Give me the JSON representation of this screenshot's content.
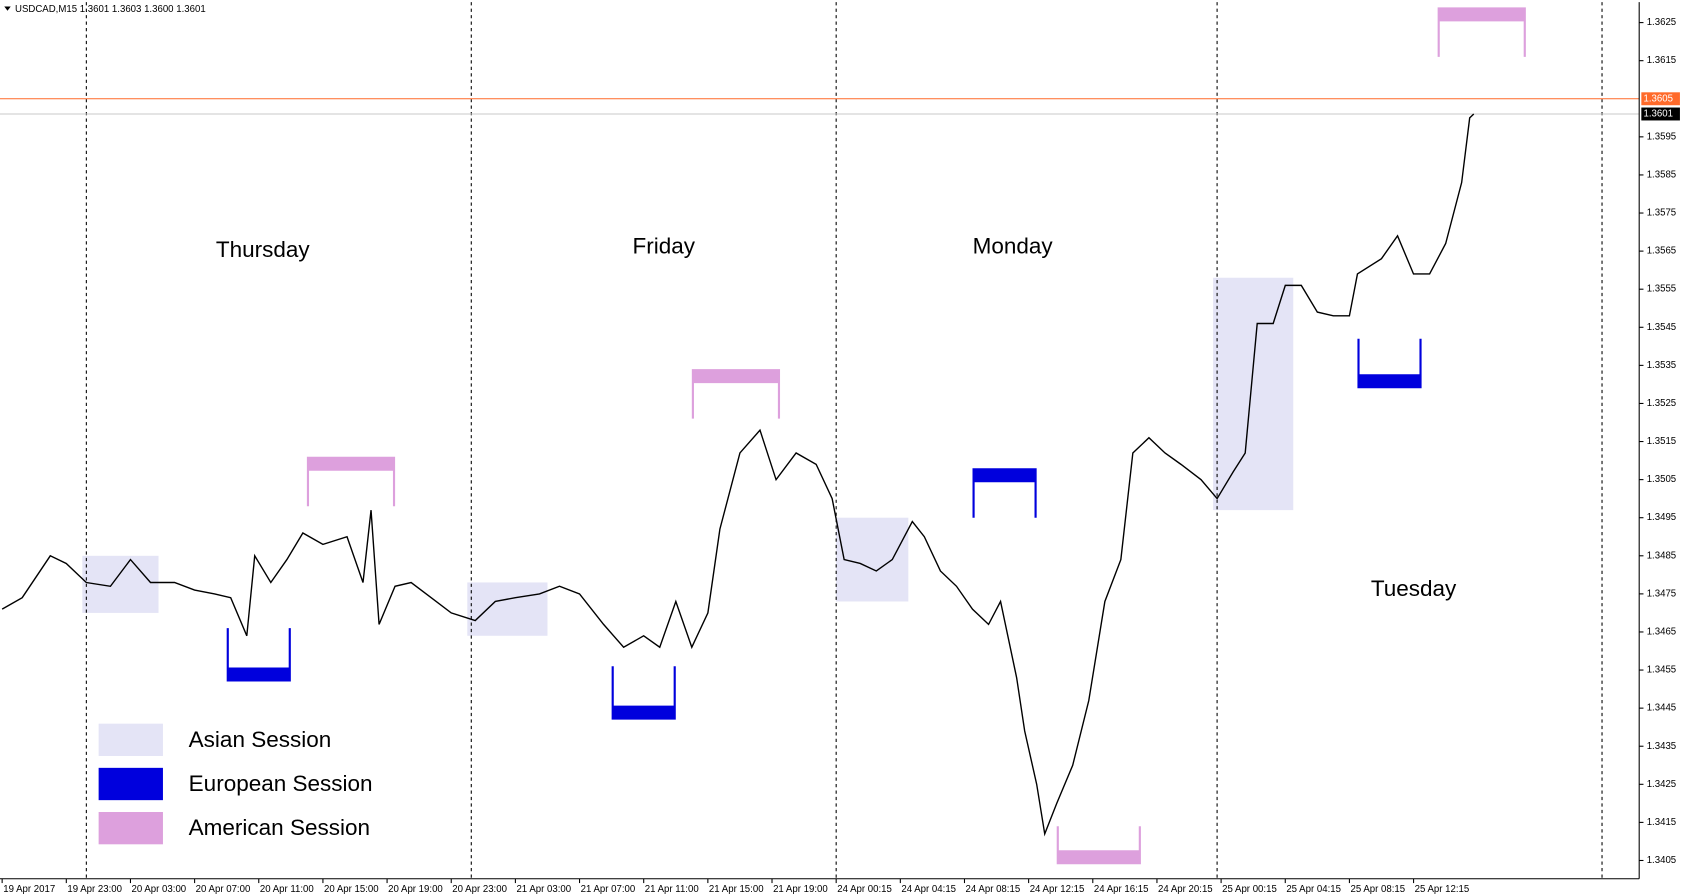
{
  "chart_data": {
    "type": "line",
    "header": "USDCAD,M15  1.3601 1.3603 1.3600 1.3601",
    "series": [
      {
        "color": "#000000",
        "x": [
          0,
          5,
          12,
          16,
          21,
          27,
          32,
          37,
          43,
          48,
          53,
          57,
          61,
          63,
          67,
          71,
          75,
          80,
          86,
          90,
          92,
          94,
          98,
          102,
          107,
          112,
          118,
          123,
          128,
          134,
          139,
          144,
          150,
          155,
          160,
          164,
          168,
          172,
          176,
          179,
          184,
          189,
          193,
          198,
          203,
          207,
          210,
          214,
          218,
          222,
          227,
          230,
          234,
          238,
          242,
          246,
          249,
          253,
          255,
          258,
          260,
          263,
          267,
          271,
          275,
          279,
          282,
          286,
          290,
          294,
          299,
          303,
          307,
          310,
          313,
          317,
          320,
          324,
          328,
          332,
          336,
          338,
          344,
          348,
          352,
          356,
          360,
          364,
          366,
          367
        ],
        "values": [
          1.3471,
          1.3474,
          1.3485,
          1.3483,
          1.3478,
          1.3477,
          1.3484,
          1.3478,
          1.3478,
          1.3476,
          1.3475,
          1.3474,
          1.3464,
          1.3485,
          1.3478,
          1.3484,
          1.3491,
          1.3488,
          1.349,
          1.3478,
          1.3497,
          1.3467,
          1.3477,
          1.3478,
          1.3474,
          1.347,
          1.3468,
          1.3473,
          1.3474,
          1.3475,
          1.3477,
          1.3475,
          1.3467,
          1.3461,
          1.3464,
          1.3461,
          1.3473,
          1.3461,
          1.347,
          1.3492,
          1.3512,
          1.3518,
          1.3505,
          1.3512,
          1.3509,
          1.35,
          1.3484,
          1.3483,
          1.3481,
          1.3484,
          1.3494,
          1.349,
          1.3481,
          1.3477,
          1.3471,
          1.3467,
          1.3473,
          1.3453,
          1.3439,
          1.3425,
          1.3412,
          1.342,
          1.343,
          1.3447,
          1.3473,
          1.3484,
          1.3512,
          1.3516,
          1.3512,
          1.3509,
          1.3505,
          1.35,
          1.3507,
          1.3512,
          1.3546,
          1.3546,
          1.3556,
          1.3556,
          1.3549,
          1.3548,
          1.3548,
          1.3559,
          1.3563,
          1.3569,
          1.3559,
          1.3559,
          1.3567,
          1.3583,
          1.36,
          1.3601
        ]
      }
    ],
    "xlim": [
      0,
      408
    ],
    "xticks": [
      {
        "value": 0,
        "label": "19 Apr 2017"
      },
      {
        "value": 16,
        "label": "19 Apr 23:00"
      },
      {
        "value": 32,
        "label": "20 Apr 03:00"
      },
      {
        "value": 48,
        "label": "20 Apr 07:00"
      },
      {
        "value": 64,
        "label": "20 Apr 11:00"
      },
      {
        "value": 80,
        "label": "20 Apr 15:00"
      },
      {
        "value": 96,
        "label": "20 Apr 19:00"
      },
      {
        "value": 112,
        "label": "20 Apr 23:00"
      },
      {
        "value": 128,
        "label": "21 Apr 03:00"
      },
      {
        "value": 144,
        "label": "21 Apr 07:00"
      },
      {
        "value": 160,
        "label": "21 Apr 11:00"
      },
      {
        "value": 176,
        "label": "21 Apr 15:00"
      },
      {
        "value": 192,
        "label": "21 Apr 19:00"
      },
      {
        "value": 208,
        "label": "24 Apr 00:15"
      },
      {
        "value": 224,
        "label": "24 Apr 04:15"
      },
      {
        "value": 240,
        "label": "24 Apr 08:15"
      },
      {
        "value": 256,
        "label": "24 Apr 12:15"
      },
      {
        "value": 272,
        "label": "24 Apr 16:15"
      },
      {
        "value": 288,
        "label": "24 Apr 20:15"
      },
      {
        "value": 304,
        "label": "25 Apr 00:15"
      },
      {
        "value": 320,
        "label": "25 Apr 04:15"
      },
      {
        "value": 336,
        "label": "25 Apr 08:15"
      },
      {
        "value": 352,
        "label": "25 Apr 12:15"
      }
    ],
    "ylim": [
      1.34,
      1.363
    ],
    "yticks": [
      1.3405,
      1.3415,
      1.3425,
      1.3435,
      1.3445,
      1.3455,
      1.3465,
      1.3475,
      1.3485,
      1.3495,
      1.3505,
      1.3515,
      1.3525,
      1.3535,
      1.3545,
      1.3555,
      1.3565,
      1.3575,
      1.3585,
      1.3595,
      1.3615,
      1.3625
    ],
    "price_lines": [
      {
        "value": 1.3605,
        "color": "#ff6a2a"
      },
      {
        "value": 1.3601,
        "color": "#c8c8c8"
      }
    ],
    "day_separators": [
      21,
      117,
      208,
      303,
      399
    ],
    "day_labels": [
      {
        "text": "Thursday",
        "x": 65,
        "y": 1.3565
      },
      {
        "text": "Friday",
        "x": 165,
        "y": 1.3566
      },
      {
        "text": "Monday",
        "x": 252,
        "y": 1.3566
      },
      {
        "text": "Tuesday",
        "x": 352,
        "y": 1.3476
      }
    ],
    "sessions": [
      {
        "name": "Asian Session",
        "color": "#e4e4f6"
      },
      {
        "name": "European Session",
        "color": "#0000dd"
      },
      {
        "name": "American Session",
        "color": "#dda0dd"
      }
    ],
    "legend": "lower-left",
    "zones": [
      {
        "session": 0,
        "x": [
          20,
          39
        ],
        "y": [
          1.347,
          1.3485
        ]
      },
      {
        "session": 0,
        "x": [
          116,
          136
        ],
        "y": [
          1.3464,
          1.3478
        ]
      },
      {
        "session": 0,
        "x": [
          208,
          226
        ],
        "y": [
          1.3473,
          1.3495
        ]
      },
      {
        "session": 0,
        "x": [
          302,
          322
        ],
        "y": [
          1.3497,
          1.3558
        ]
      },
      {
        "session": 1,
        "x": [
          56,
          72
        ],
        "y": [
          1.3452,
          1.3466
        ],
        "bar": "bottom"
      },
      {
        "session": 1,
        "x": [
          152,
          168
        ],
        "y": [
          1.3442,
          1.3456
        ],
        "bar": "bottom"
      },
      {
        "session": 1,
        "x": [
          242,
          258
        ],
        "y": [
          1.3495,
          1.3508
        ],
        "bar": "top"
      },
      {
        "session": 1,
        "x": [
          338,
          354
        ],
        "y": [
          1.3529,
          1.3542
        ],
        "bar": "bottom"
      },
      {
        "session": 2,
        "x": [
          76,
          98
        ],
        "y": [
          1.3498,
          1.3511
        ],
        "bar": "top"
      },
      {
        "session": 2,
        "x": [
          172,
          194
        ],
        "y": [
          1.3521,
          1.3534
        ],
        "bar": "top"
      },
      {
        "session": 2,
        "x": [
          263,
          284
        ],
        "y": [
          1.3404,
          1.3414
        ],
        "bar": "bottom"
      },
      {
        "session": 2,
        "x": [
          358,
          380
        ],
        "y": [
          1.3616,
          1.3629
        ],
        "bar": "top"
      }
    ]
  }
}
